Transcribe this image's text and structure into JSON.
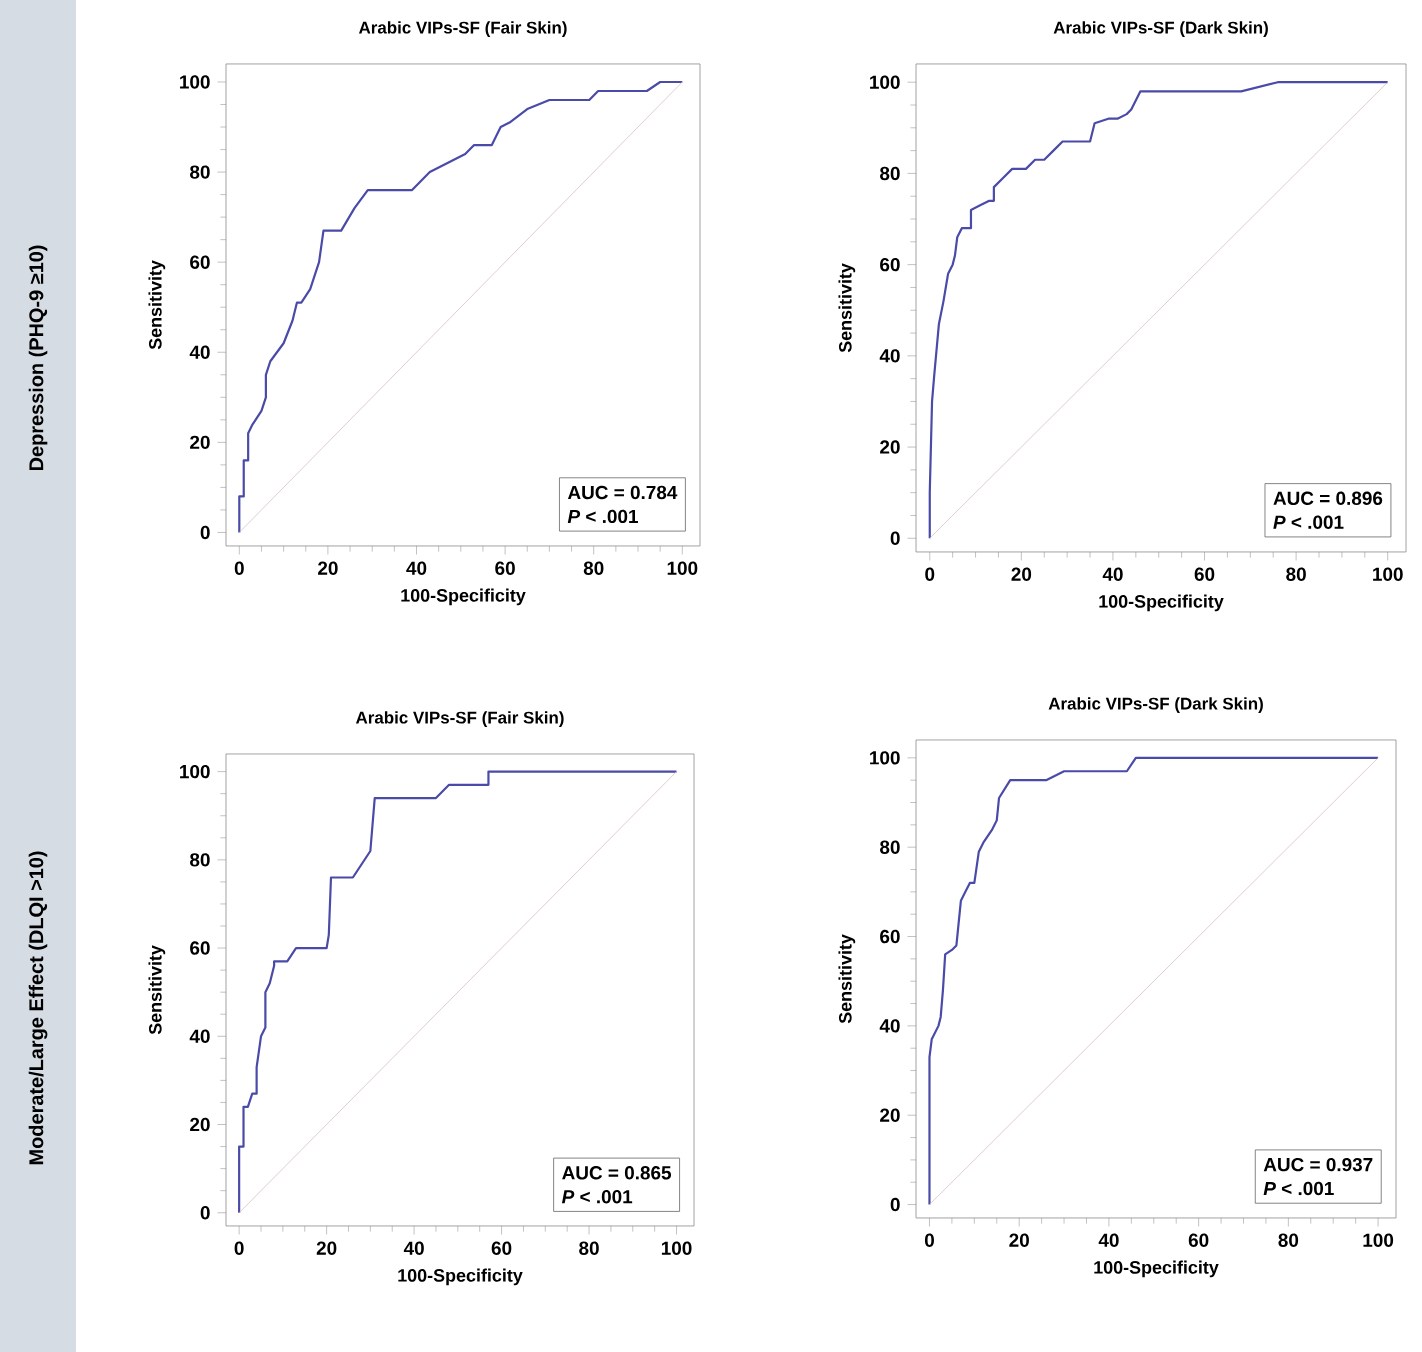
{
  "chart_data": [
    {
      "type": "line",
      "title": "Arabic VIPs-SF (Fair Skin)",
      "xlabel": "100-Specificity",
      "ylabel": "Sensitivity",
      "xlim": [
        -3,
        104
      ],
      "ylim": [
        -3,
        104
      ],
      "xticks": [
        0,
        20,
        40,
        60,
        80,
        100
      ],
      "yticks": [
        0,
        20,
        40,
        60,
        80,
        100
      ],
      "annotations": [
        "AUC = 0.784",
        "*P* <  .001",
        "Depression (PHQ-9 ≥10)"
      ],
      "series": [
        {
          "color": "#4a4aa8",
          "x": [
            0,
            0,
            1,
            1,
            2,
            2,
            3,
            5,
            6,
            6,
            7,
            10,
            12,
            13,
            14,
            16,
            18,
            19,
            23,
            26,
            29,
            39,
            43,
            47,
            51,
            53,
            57,
            59,
            61,
            65,
            70,
            79,
            81,
            92,
            95,
            100
          ],
          "values": [
            0,
            8,
            8,
            16,
            16,
            22,
            24,
            27,
            30,
            35,
            38,
            42,
            47,
            51,
            51,
            54,
            60,
            67,
            67,
            72,
            76,
            76,
            80,
            82,
            84,
            86,
            86,
            90,
            91,
            94,
            96,
            96,
            98,
            98,
            100,
            100
          ]
        },
        {
          "color": "#d9c0c0",
          "x": [
            0,
            100
          ],
          "values": [
            0,
            100
          ]
        }
      ]
    },
    {
      "type": "line",
      "title": "Arabic VIPs-SF (Dark Skin)",
      "xlabel": "100-Specificity",
      "ylabel": "Sensitivity",
      "xlim": [
        -3,
        104
      ],
      "ylim": [
        -3,
        104
      ],
      "xticks": [
        0,
        20,
        40,
        60,
        80,
        100
      ],
      "yticks": [
        0,
        20,
        40,
        60,
        80,
        100
      ],
      "annotations": [
        "AUC = 0.896",
        "*P* <  .001"
      ],
      "series": [
        {
          "color": "#4a4aa8",
          "x": [
            0,
            0,
            0.5,
            1,
            2,
            3,
            4,
            5,
            5.5,
            6,
            7,
            9,
            9,
            11,
            13,
            14,
            14,
            16,
            18,
            21,
            23,
            25,
            27,
            29,
            35,
            36,
            39,
            41,
            43,
            44,
            46,
            68,
            76,
            100
          ],
          "values": [
            0,
            10,
            30,
            36,
            47,
            52,
            58,
            60,
            62,
            66,
            68,
            68,
            72,
            73,
            74,
            74,
            77,
            79,
            81,
            81,
            83,
            83,
            85,
            87,
            87,
            91,
            92,
            92,
            93,
            94,
            98,
            98,
            100,
            100
          ]
        },
        {
          "color": "#d9c0c0",
          "x": [
            0,
            100
          ],
          "values": [
            0,
            100
          ]
        }
      ]
    },
    {
      "type": "line",
      "title": "Arabic VIPs-SF (Fair Skin)",
      "xlabel": "100-Specificity",
      "ylabel": "Sensitivity",
      "xlim": [
        -3,
        104
      ],
      "ylim": [
        -3,
        104
      ],
      "xticks": [
        0,
        20,
        40,
        60,
        80,
        100
      ],
      "yticks": [
        0,
        20,
        40,
        60,
        80,
        100
      ],
      "annotations": [
        "AUC = 0.865",
        "*P* < .001",
        "Moderate/Large Effect (DLQI >10)"
      ],
      "series": [
        {
          "color": "#4a4aa8",
          "x": [
            0,
            0,
            1,
            1,
            2,
            3,
            4,
            4,
            5,
            6,
            6,
            7,
            8,
            8,
            11,
            13,
            20,
            20.5,
            21,
            26,
            28,
            30,
            31,
            45,
            48,
            57,
            57,
            100
          ],
          "values": [
            0,
            15,
            15,
            24,
            24,
            27,
            27,
            33,
            40,
            42,
            50,
            52,
            56,
            57,
            57,
            60,
            60,
            63,
            76,
            76,
            79,
            82,
            94,
            94,
            97,
            97,
            100,
            100
          ]
        },
        {
          "color": "#d9c0c0",
          "x": [
            0,
            100
          ],
          "values": [
            0,
            100
          ]
        }
      ]
    },
    {
      "type": "line",
      "title": "Arabic VIPs-SF (Dark Skin)",
      "xlabel": "100-Specificity",
      "ylabel": "Sensitivity",
      "xlim": [
        -3,
        104
      ],
      "ylim": [
        -3,
        104
      ],
      "xticks": [
        0,
        20,
        40,
        60,
        80,
        100
      ],
      "yticks": [
        0,
        20,
        40,
        60,
        80,
        100
      ],
      "annotations": [
        "AUC = 0.937",
        "*P* < .001"
      ],
      "series": [
        {
          "color": "#4a4aa8",
          "x": [
            0,
            0,
            0.5,
            1,
            2,
            2.5,
            3,
            3.5,
            5,
            6,
            7,
            8,
            9,
            10,
            11,
            12,
            14,
            15,
            15.5,
            18,
            26,
            30,
            44,
            46,
            100
          ],
          "values": [
            0,
            33,
            37,
            38,
            40,
            42,
            48,
            56,
            57,
            58,
            68,
            70,
            72,
            72,
            79,
            81,
            84,
            86,
            91,
            95,
            95,
            97,
            97,
            100,
            100
          ]
        },
        {
          "color": "#d9c0c0",
          "x": [
            0,
            100
          ],
          "values": [
            0,
            100
          ]
        }
      ]
    }
  ]
}
